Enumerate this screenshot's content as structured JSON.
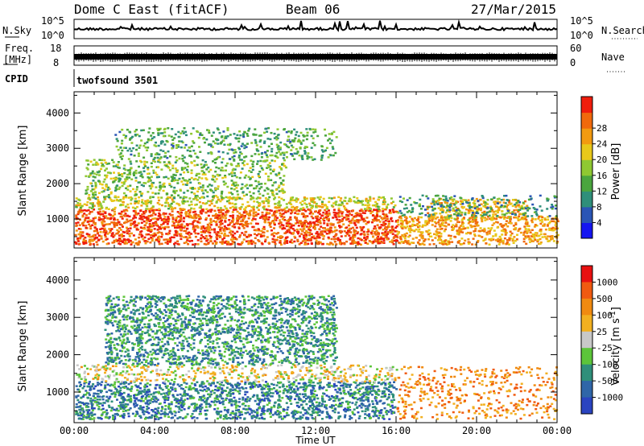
{
  "header": {
    "station": "Dome C East (fitACF)",
    "beam": "Beam 06",
    "date": "27/Mar/2015"
  },
  "noise_panel": {
    "left_label": "N.Sky",
    "left_ticks": [
      "10^5",
      "10^0"
    ],
    "right_ticks": [
      "10^5",
      "10^0"
    ],
    "right_label": "N.Search"
  },
  "freq_panel": {
    "label_line1": "Freq.",
    "label_line2": "[MHz]",
    "left_ticks": [
      "18",
      "8"
    ],
    "right_ticks": [
      "60",
      "0"
    ],
    "right_label": "Nave"
  },
  "cpid_panel": {
    "label": "CPID",
    "program": "twofsound 3501"
  },
  "chart_data": [
    {
      "type": "heatmap",
      "title": "",
      "xlabel": "Time UT",
      "ylabel": "Slant Range [km]",
      "x_ticks": [
        "00:00",
        "04:00",
        "08:00",
        "12:00",
        "16:00",
        "20:00",
        "00:00"
      ],
      "x_range_hours": [
        0,
        24
      ],
      "y_ticks": [
        "1000",
        "2000",
        "3000",
        "4000"
      ],
      "y_range_km": [
        180,
        4600
      ],
      "colorbar": {
        "label": "Power [dB]",
        "ticks": [
          "4",
          "8",
          "12",
          "16",
          "20",
          "24",
          "28"
        ],
        "colors": [
          "#1515f0",
          "#2a55b5",
          "#2f8f7a",
          "#4aa53e",
          "#8fc832",
          "#e8c81a",
          "#f29a10",
          "#f0690c",
          "#ef1d0c"
        ]
      },
      "echo_regions": [
        {
          "t": [
            0.0,
            16.0
          ],
          "r": [
            300,
            1300
          ],
          "level": 0.92
        },
        {
          "t": [
            0.0,
            16.0
          ],
          "r": [
            1300,
            1650
          ],
          "level": 0.6
        },
        {
          "t": [
            0.5,
            10.5
          ],
          "r": [
            1600,
            2700
          ],
          "level": 0.45
        },
        {
          "t": [
            2.0,
            13.0
          ],
          "r": [
            2700,
            3600
          ],
          "level": 0.35
        },
        {
          "t": [
            16.0,
            24.0
          ],
          "r": [
            300,
            1100
          ],
          "level": 0.75
        },
        {
          "t": [
            17.5,
            22.5
          ],
          "r": [
            1000,
            1600
          ],
          "level": 0.7
        },
        {
          "t": [
            16.0,
            24.0
          ],
          "r": [
            1100,
            1700
          ],
          "level": 0.3
        }
      ]
    },
    {
      "type": "heatmap",
      "title": "",
      "xlabel": "Time UT",
      "ylabel": "Slant Range [km]",
      "x_ticks": [
        "00:00",
        "04:00",
        "08:00",
        "12:00",
        "16:00",
        "20:00",
        "00:00"
      ],
      "x_range_hours": [
        0,
        24
      ],
      "y_ticks": [
        "1000",
        "2000",
        "3000",
        "4000"
      ],
      "y_range_km": [
        180,
        4600
      ],
      "colorbar": {
        "label_main": "Velocity",
        "label_units": "[m s",
        "label_sup": "-1",
        "label_close": "]",
        "ticks": [
          "1000",
          "500",
          "100",
          "25",
          "-25",
          "-100",
          "-500",
          "-1000"
        ],
        "colors": [
          "#2a44c0",
          "#2f66a8",
          "#2f8f7a",
          "#5cc53a",
          "#c8c8c8",
          "#f2b020",
          "#f08a10",
          "#f05a10",
          "#e81010"
        ]
      },
      "echo_regions": [
        {
          "t": [
            0.0,
            16.0
          ],
          "r": [
            300,
            1300
          ],
          "level": 0.8
        },
        {
          "t": [
            0.0,
            16.0
          ],
          "r": [
            1300,
            1750
          ],
          "level": 0.45
        },
        {
          "t": [
            1.5,
            13.0
          ],
          "r": [
            1750,
            3600
          ],
          "level": 0.75
        },
        {
          "t": [
            16.0,
            24.0
          ],
          "r": [
            300,
            1700
          ],
          "level": 0.25
        }
      ]
    }
  ]
}
